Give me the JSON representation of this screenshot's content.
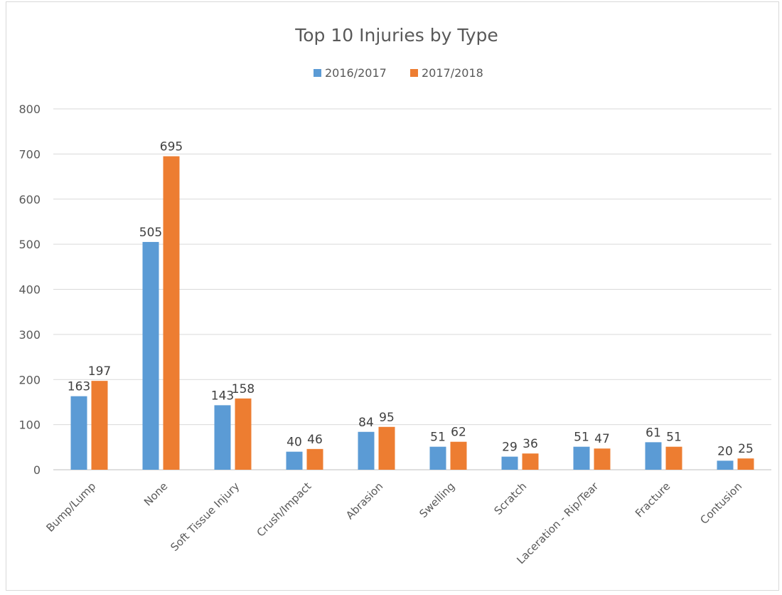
{
  "chart_data": {
    "type": "bar",
    "title": "Top 10 Injuries by Type",
    "categories": [
      "Bump/Lump",
      "None",
      "Soft Tissue Injury",
      "Crush/Impact",
      "Abrasion",
      "Swelling",
      "Scratch",
      "Laceration - Rip/Tear",
      "Fracture",
      "Contusion"
    ],
    "series": [
      {
        "name": "2016/2017",
        "color": "#5b9bd5",
        "values": [
          163,
          505,
          143,
          40,
          84,
          51,
          29,
          51,
          61,
          20
        ]
      },
      {
        "name": "2017/2018",
        "color": "#ed7d31",
        "values": [
          197,
          695,
          158,
          46,
          95,
          62,
          36,
          47,
          51,
          25
        ]
      }
    ],
    "ylim": [
      0,
      800
    ],
    "yticks": [
      0,
      100,
      200,
      300,
      400,
      500,
      600,
      700,
      800
    ],
    "grid": true,
    "legend_position": "top"
  }
}
